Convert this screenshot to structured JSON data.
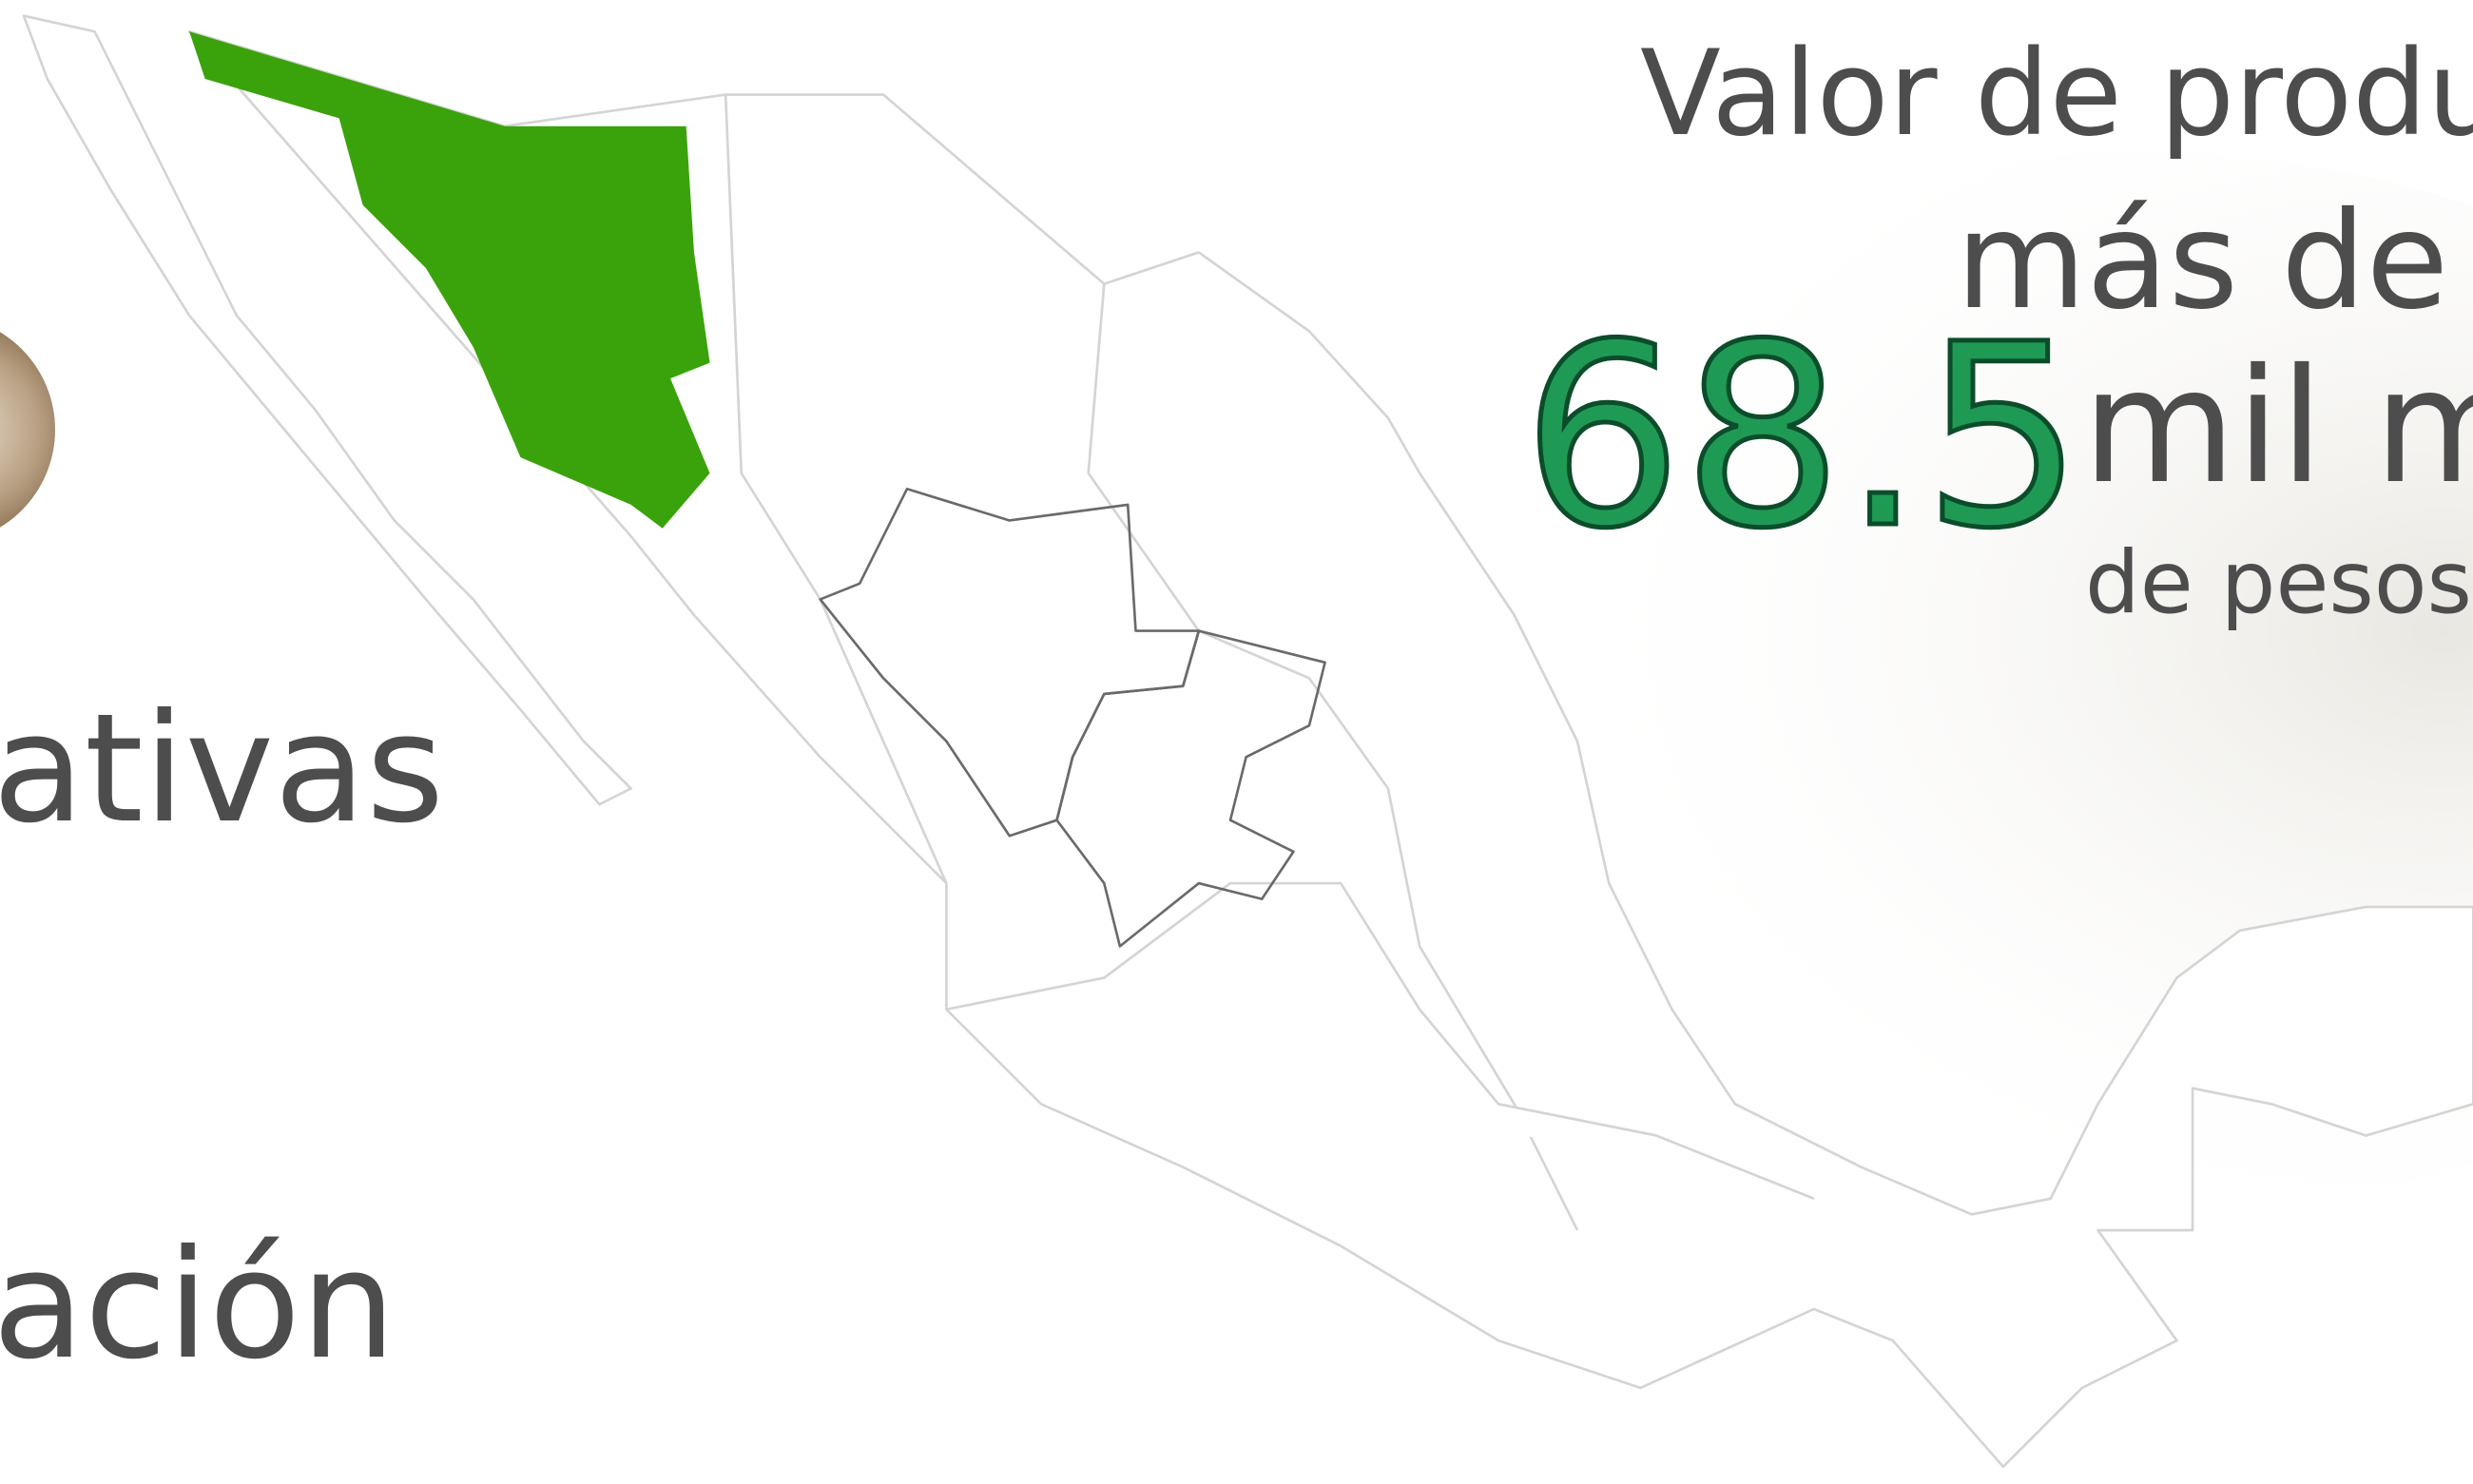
{
  "header": {
    "title": "Valor de produc",
    "prefix": "más de",
    "value": 68.5,
    "unit": "mil mi",
    "unit_note": "de pesos"
  },
  "left_text": [
    "ativas",
    "ación"
  ]
}
